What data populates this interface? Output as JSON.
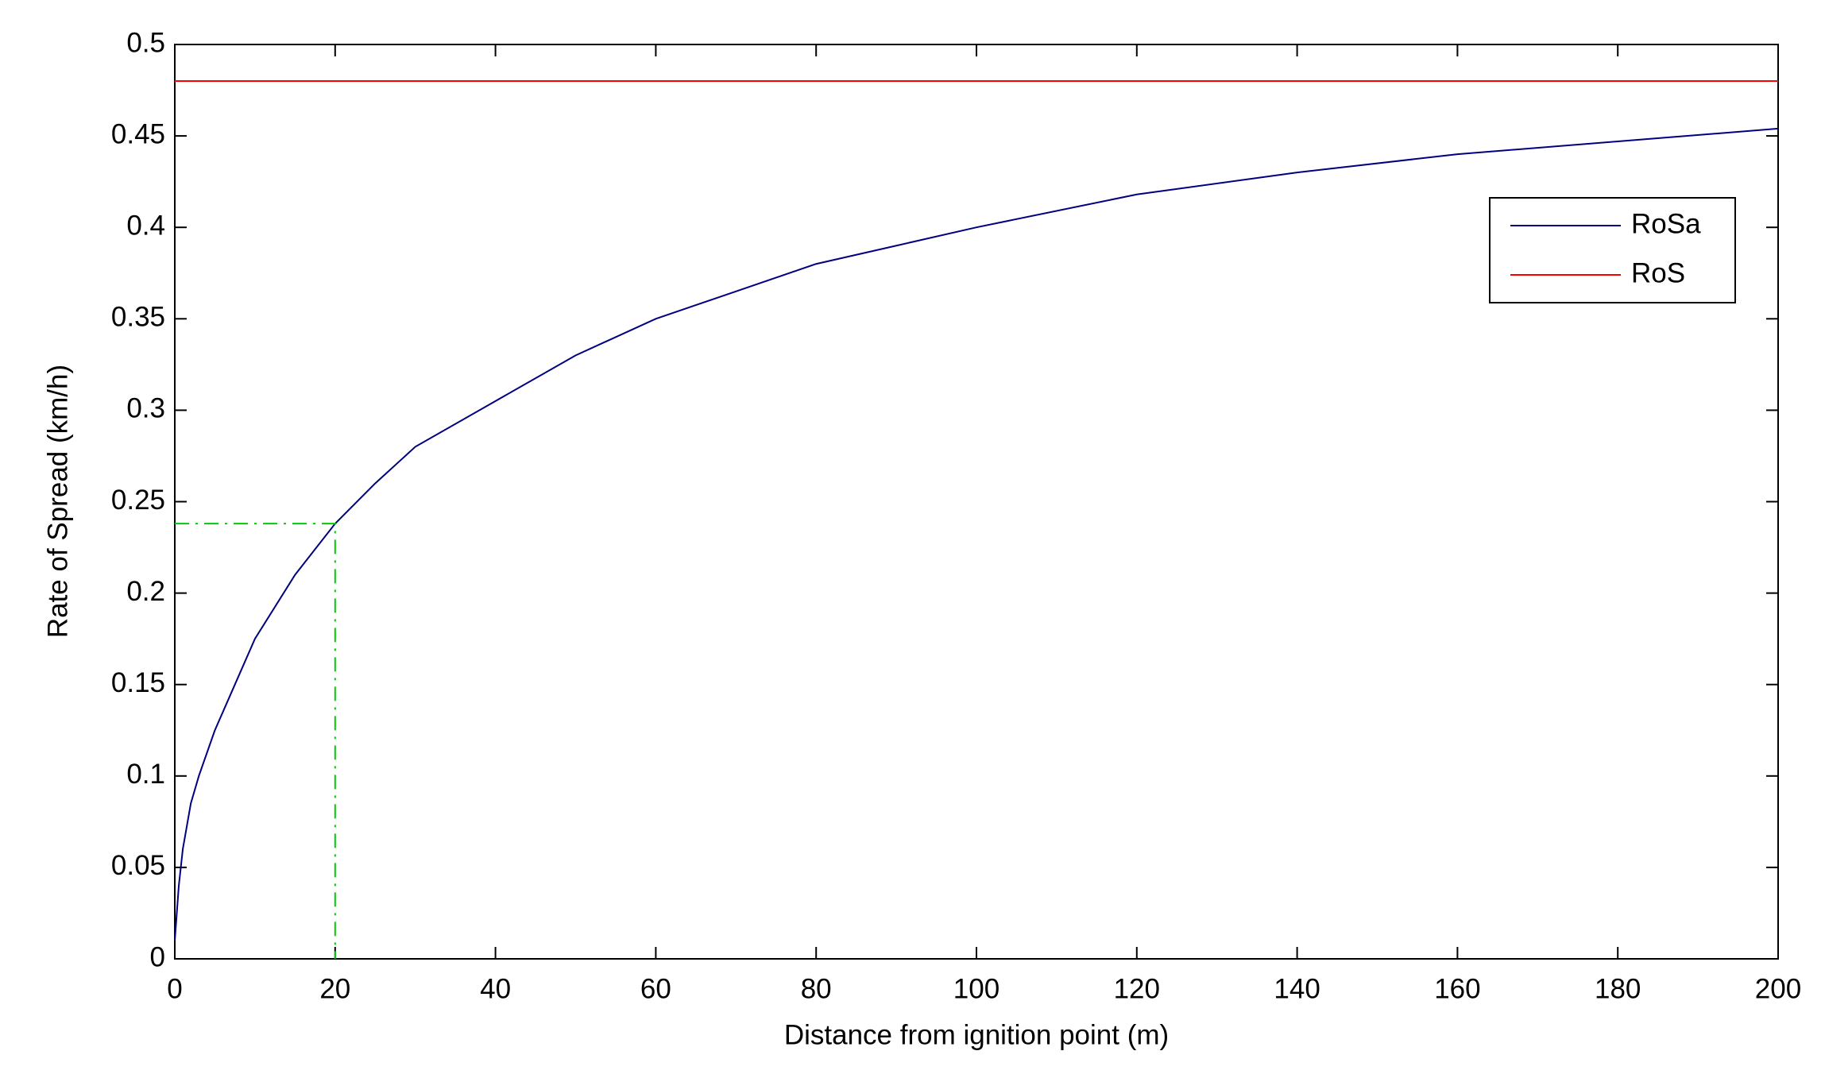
{
  "chart_data": {
    "type": "line",
    "xlabel": "Distance from ignition point (m)",
    "ylabel": "Rate of Spread (km/h)",
    "xlim": [
      0,
      200
    ],
    "ylim": [
      0,
      0.5
    ],
    "xticks": [
      0,
      20,
      40,
      60,
      80,
      100,
      120,
      140,
      160,
      180,
      200
    ],
    "yticks": [
      0,
      0.05,
      0.1,
      0.15,
      0.2,
      0.25,
      0.3,
      0.35,
      0.4,
      0.45,
      0.5
    ],
    "legend": "upper right",
    "series": [
      {
        "name": "RoSa",
        "color": "#000080",
        "x": [
          0,
          0.5,
          1,
          2,
          3,
          5,
          7,
          10,
          15,
          20,
          25,
          30,
          40,
          50,
          60,
          70,
          80,
          90,
          100,
          120,
          140,
          160,
          180,
          200
        ],
        "values": [
          0.01,
          0.04,
          0.06,
          0.085,
          0.1,
          0.125,
          0.145,
          0.175,
          0.21,
          0.238,
          0.26,
          0.28,
          0.305,
          0.33,
          0.35,
          0.365,
          0.38,
          0.39,
          0.4,
          0.418,
          0.43,
          0.44,
          0.447,
          0.454
        ]
      },
      {
        "name": "RoS",
        "color": "#ff0000",
        "x": [
          0,
          200
        ],
        "values": [
          0.48,
          0.48
        ]
      },
      {
        "color": "#00cc00",
        "dash": "dashdot",
        "x": [
          0,
          20,
          20
        ],
        "values": [
          0.238,
          0.238,
          0
        ]
      }
    ]
  }
}
